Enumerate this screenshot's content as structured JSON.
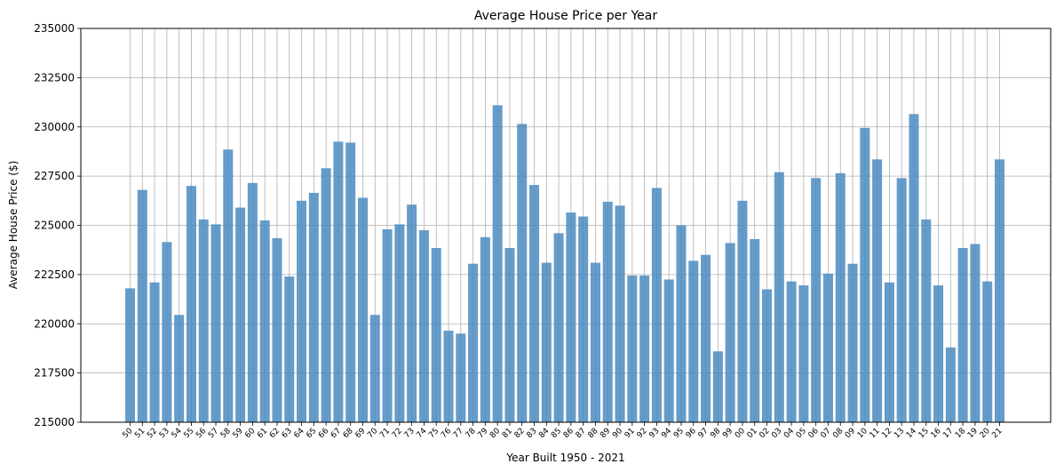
{
  "chart_data": {
    "type": "bar",
    "title": "Average House Price per Year",
    "xlabel": "Year Built 1950 - 2021",
    "ylabel": "Average House Price ($)",
    "ylim": [
      215000,
      235000
    ],
    "yticks": [
      "215000",
      "217500",
      "220000",
      "222500",
      "225000",
      "227500",
      "230000",
      "232500",
      "235000"
    ],
    "grid": true,
    "bar_color": "#4a8bbf",
    "bar_alpha": 0.85,
    "categories": [
      "50",
      "51",
      "52",
      "53",
      "54",
      "55",
      "56",
      "57",
      "58",
      "59",
      "60",
      "61",
      "62",
      "63",
      "64",
      "65",
      "66",
      "67",
      "68",
      "69",
      "70",
      "71",
      "72",
      "73",
      "74",
      "75",
      "76",
      "77",
      "78",
      "79",
      "80",
      "81",
      "82",
      "83",
      "84",
      "85",
      "86",
      "87",
      "88",
      "89",
      "90",
      "91",
      "92",
      "93",
      "94",
      "95",
      "96",
      "97",
      "98",
      "99",
      "00",
      "01",
      "02",
      "03",
      "04",
      "05",
      "06",
      "07",
      "08",
      "09",
      "10",
      "11",
      "12",
      "13",
      "14",
      "15",
      "16",
      "17",
      "18",
      "19",
      "20",
      "21"
    ],
    "values": [
      221800,
      226800,
      222100,
      224150,
      220450,
      227000,
      225300,
      225050,
      228850,
      225900,
      227150,
      225250,
      224350,
      222400,
      226250,
      226650,
      227900,
      229250,
      229200,
      226400,
      220450,
      224800,
      225050,
      226050,
      224750,
      223850,
      219650,
      219500,
      223050,
      224400,
      231100,
      223850,
      230150,
      227050,
      223100,
      224600,
      225650,
      225450,
      223100,
      226200,
      226000,
      222450,
      222450,
      226900,
      222250,
      225000,
      223200,
      223500,
      218600,
      224100,
      226250,
      224300,
      221750,
      227700,
      222150,
      221950,
      227400,
      222550,
      227650,
      223050,
      229950,
      228350,
      222100,
      227400,
      230650,
      225300,
      221950,
      218800,
      223850,
      224050,
      222150,
      228350
    ]
  }
}
